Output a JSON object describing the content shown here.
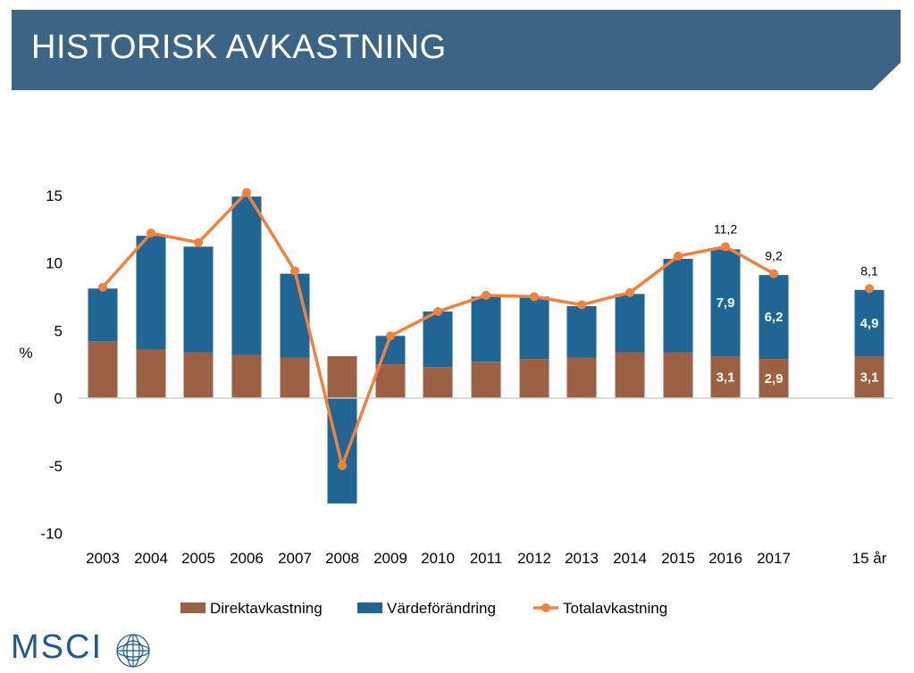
{
  "header": {
    "title": "HISTORISK AVKASTNING"
  },
  "colors": {
    "banner": "#3c6585",
    "direkt": "#9b6142",
    "varde": "#1f6694",
    "total": "#f0823c",
    "axis": "#cfcfcf",
    "logo": "#1f5b89"
  },
  "logo": {
    "text": "MSCI",
    "icon": "globe-icon"
  },
  "chart_data": {
    "type": "bar",
    "stacked": true,
    "ylabel": "%",
    "ylim": [
      -10,
      15
    ],
    "yticks": [
      15,
      10,
      5,
      0,
      -5,
      -10
    ],
    "categories": [
      "2003",
      "2004",
      "2005",
      "2006",
      "2007",
      "2008",
      "2009",
      "2010",
      "2011",
      "2012",
      "2013",
      "2014",
      "2015",
      "2016",
      "2017",
      "15 år"
    ],
    "series": [
      {
        "name": "Direktavkastning",
        "type": "bar",
        "values": [
          4.2,
          3.6,
          3.4,
          3.2,
          3.0,
          3.1,
          2.5,
          2.3,
          2.7,
          2.9,
          3.0,
          3.4,
          3.4,
          3.1,
          2.9,
          3.1
        ],
        "labels": [
          "",
          "",
          "",
          "",
          "",
          "",
          "",
          "",
          "",
          "",
          "",
          "",
          "",
          "3,1",
          "2,9",
          "3,1"
        ]
      },
      {
        "name": "Värdeförändring",
        "type": "bar",
        "values": [
          3.9,
          8.4,
          7.8,
          11.7,
          6.2,
          -7.8,
          2.1,
          4.1,
          4.8,
          4.6,
          3.8,
          4.3,
          6.9,
          7.9,
          6.2,
          4.9
        ],
        "labels": [
          "",
          "",
          "",
          "",
          "",
          "",
          "",
          "",
          "",
          "",
          "",
          "",
          "",
          "7,9",
          "6,2",
          "4,9"
        ]
      },
      {
        "name": "Totalavkastning",
        "type": "line",
        "values": [
          8.2,
          12.2,
          11.5,
          15.2,
          9.4,
          -5.0,
          4.6,
          6.4,
          7.6,
          7.5,
          6.9,
          7.8,
          10.5,
          11.2,
          9.2,
          8.1
        ],
        "labels": [
          "",
          "",
          "",
          "",
          "",
          "",
          "",
          "",
          "",
          "",
          "",
          "",
          "",
          "11,2",
          "9,2",
          "8,1"
        ]
      }
    ],
    "legend": [
      "Direktavkastning",
      "Värdeförändring",
      "Totalavkastning"
    ],
    "legend_position": "bottom",
    "grid": false
  }
}
